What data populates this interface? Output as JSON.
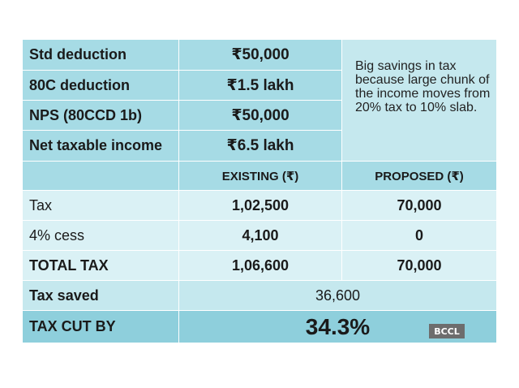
{
  "top_rows": [
    {
      "label": "Std deduction",
      "value": "₹50,000"
    },
    {
      "label": "80C deduction",
      "value": "₹1.5 lakh"
    },
    {
      "label": "NPS (80CCD 1b)",
      "value": "₹50,000"
    },
    {
      "label": "Net taxable income",
      "value": "₹6.5 lakh"
    }
  ],
  "note": "Big savings in tax because large chunk of the income moves from 20% tax to 10% slab.",
  "header": {
    "existing": "EXISTING (₹)",
    "proposed": "PROPOSED (₹)"
  },
  "rows": [
    {
      "label": "Tax",
      "existing": "1,02,500",
      "proposed": "70,000"
    },
    {
      "label": "4% cess",
      "existing": "4,100",
      "proposed": "0"
    },
    {
      "label": "TOTAL TAX",
      "existing": "1,06,600",
      "proposed": "70,000"
    }
  ],
  "tax_saved": {
    "label": "Tax saved",
    "value": "36,600"
  },
  "tax_cut": {
    "label": "TAX CUT BY",
    "value": "34.3%"
  },
  "watermark": "BCCL",
  "colors": {
    "dark_band": "#a6dbe5",
    "mid_band": "#c5e8ee",
    "light_band": "#daf1f5",
    "emphasis": "#8ecfdc"
  }
}
